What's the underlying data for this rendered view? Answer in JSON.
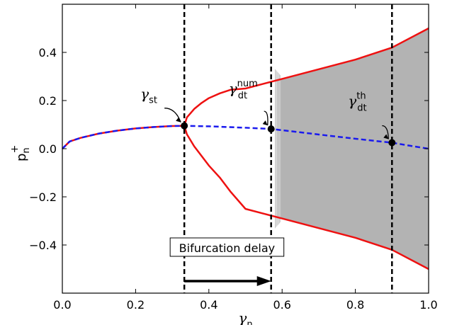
{
  "chart_data": {
    "type": "line",
    "xlabel": "γ_n",
    "ylabel": "p_n^+",
    "xlim": [
      0.0,
      1.0
    ],
    "ylim": [
      -0.6,
      0.6
    ],
    "xticks": [
      "0.0",
      "0.2",
      "0.4",
      "0.6",
      "0.8",
      "1.0"
    ],
    "yticks": [
      "−0.4",
      "−0.2",
      "0.0",
      "0.2",
      "0.4"
    ],
    "xtick_values": [
      0.0,
      0.2,
      0.4,
      0.6,
      0.8,
      1.0
    ],
    "ytick_values": [
      -0.4,
      -0.2,
      0.0,
      0.2,
      0.4
    ],
    "grid": false,
    "colors": {
      "upper_lower": "#ee1111",
      "central": "#1a1aee",
      "band": "#b3b3b3",
      "vline": "#000000"
    },
    "series": [
      {
        "style": "solid-red",
        "x": [
          0.0,
          0.02,
          0.05,
          0.1,
          0.15,
          0.2,
          0.25,
          0.3,
          0.333
        ],
        "y": [
          0.0,
          0.03,
          0.045,
          0.063,
          0.075,
          0.084,
          0.09,
          0.094,
          0.095
        ]
      },
      {
        "style": "solid-red",
        "x": [
          0.333,
          0.34,
          0.36,
          0.38,
          0.4,
          0.43,
          0.46,
          0.5,
          0.55,
          0.6,
          0.7,
          0.8,
          0.9,
          1.0
        ],
        "y": [
          0.095,
          0.13,
          0.165,
          0.19,
          0.21,
          0.23,
          0.245,
          0.25,
          0.27,
          0.29,
          0.33,
          0.37,
          0.42,
          0.5
        ]
      },
      {
        "style": "solid-red",
        "x": [
          0.333,
          0.34,
          0.36,
          0.38,
          0.4,
          0.43,
          0.46,
          0.5,
          0.55,
          0.6,
          0.7,
          0.8,
          0.9,
          1.0
        ],
        "y": [
          0.095,
          0.06,
          0.01,
          -0.03,
          -0.07,
          -0.12,
          -0.18,
          -0.25,
          -0.27,
          -0.29,
          -0.33,
          -0.37,
          -0.42,
          -0.5
        ]
      },
      {
        "style": "dashed-blue",
        "x": [
          0.0,
          0.02,
          0.05,
          0.1,
          0.15,
          0.2,
          0.25,
          0.3,
          0.333,
          0.4,
          0.5,
          0.57,
          0.65,
          0.75,
          0.85,
          0.9,
          0.95,
          1.0
        ],
        "y": [
          0.0,
          0.03,
          0.045,
          0.063,
          0.075,
          0.084,
          0.09,
          0.094,
          0.095,
          0.093,
          0.087,
          0.082,
          0.068,
          0.05,
          0.033,
          0.025,
          0.012,
          0.0
        ]
      }
    ],
    "band": {
      "x": [
        0.585,
        0.6,
        0.7,
        0.8,
        0.9,
        1.0
      ],
      "upper": [
        0.28,
        0.29,
        0.33,
        0.37,
        0.42,
        0.5
      ],
      "lower": [
        -0.28,
        -0.29,
        -0.33,
        -0.37,
        -0.42,
        -0.5
      ]
    },
    "vlines": [
      0.333,
      0.57,
      0.9
    ],
    "points": [
      {
        "x": 0.333,
        "y": 0.095
      },
      {
        "x": 0.57,
        "y": 0.082
      },
      {
        "x": 0.9,
        "y": 0.025
      }
    ],
    "annotations": [
      {
        "main": "γ",
        "sub": "st",
        "sup": ""
      },
      {
        "main": "γ",
        "sub": "dt",
        "sup": "num"
      },
      {
        "main": "γ",
        "sub": "dt",
        "sup": "th"
      }
    ],
    "delay_box": {
      "label": "Bifurcation delay",
      "x_from": 0.333,
      "x_to": 0.57,
      "y": -0.5
    }
  }
}
